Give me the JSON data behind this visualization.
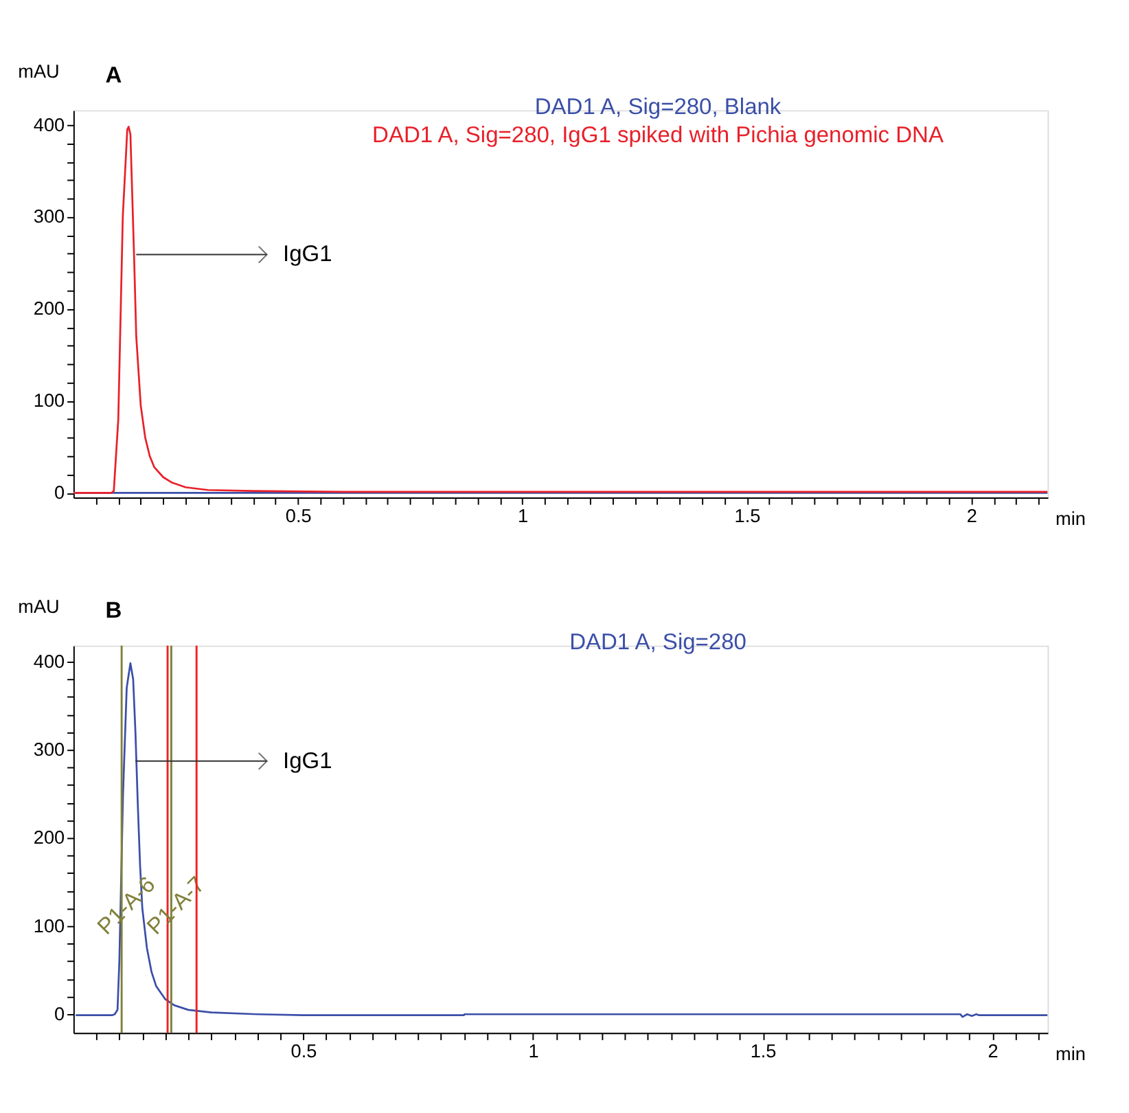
{
  "chart_data": [
    {
      "type": "line",
      "title": "A",
      "ylabel": "mAU",
      "xlabel": "min",
      "legend": "top",
      "grid": false,
      "xlim": [
        0,
        2.17
      ],
      "ylim": [
        -5,
        416
      ],
      "xticks": [
        {
          "value": 0.05,
          "label": null
        },
        {
          "value": 0.1,
          "label": null
        },
        {
          "value": 0.15,
          "label": null
        },
        {
          "value": 0.2,
          "label": null
        },
        {
          "value": 0.25,
          "label": null
        },
        {
          "value": 0.3,
          "label": null
        },
        {
          "value": 0.35,
          "label": null
        },
        {
          "value": 0.4,
          "label": null
        },
        {
          "value": 0.45,
          "label": null
        },
        0.5,
        {
          "value": 0.55,
          "label": null
        },
        {
          "value": 0.6,
          "label": null
        },
        {
          "value": 0.65,
          "label": null
        },
        {
          "value": 0.7,
          "label": null
        },
        {
          "value": 0.75,
          "label": null
        },
        {
          "value": 0.8,
          "label": null
        },
        {
          "value": 0.85,
          "label": null
        },
        {
          "value": 0.9,
          "label": null
        },
        {
          "value": 0.95,
          "label": null
        },
        1,
        {
          "value": 1.05,
          "label": null
        },
        {
          "value": 1.1,
          "label": null
        },
        {
          "value": 1.15,
          "label": null
        },
        {
          "value": 1.2,
          "label": null
        },
        {
          "value": 1.25,
          "label": null
        },
        {
          "value": 1.3,
          "label": null
        },
        {
          "value": 1.35,
          "label": null
        },
        {
          "value": 1.4,
          "label": null
        },
        {
          "value": 1.45,
          "label": null
        },
        1.5,
        {
          "value": 1.55,
          "label": null
        },
        {
          "value": 1.6,
          "label": null
        },
        {
          "value": 1.65,
          "label": null
        },
        {
          "value": 1.7,
          "label": null
        },
        {
          "value": 1.75,
          "label": null
        },
        {
          "value": 1.8,
          "label": null
        },
        {
          "value": 1.85,
          "label": null
        },
        {
          "value": 1.9,
          "label": null
        },
        {
          "value": 1.95,
          "label": null
        },
        2,
        {
          "value": 2.05,
          "label": null
        },
        {
          "value": 2.1,
          "label": null
        },
        {
          "value": 2.15,
          "label": null
        }
      ],
      "yticks": [
        0,
        {
          "value": 20,
          "label": null
        },
        {
          "value": 40,
          "label": null
        },
        {
          "value": 60,
          "label": null
        },
        {
          "value": 80,
          "label": null
        },
        100,
        {
          "value": 120,
          "label": null
        },
        {
          "value": 140,
          "label": null
        },
        {
          "value": 160,
          "label": null
        },
        {
          "value": 180,
          "label": null
        },
        200,
        {
          "value": 220,
          "label": null
        },
        {
          "value": 240,
          "label": null
        },
        {
          "value": 260,
          "label": null
        },
        {
          "value": 280,
          "label": null
        },
        300,
        {
          "value": 320,
          "label": null
        },
        {
          "value": 340,
          "label": null
        },
        {
          "value": 360,
          "label": null
        },
        {
          "value": 380,
          "label": null
        },
        400
      ],
      "annotations": [
        {
          "text": "IgG1",
          "x": 0.14,
          "y": 259
        }
      ],
      "series": [
        {
          "name": "DAD1 A, Sig=280, Blank",
          "color": "#3b4fa8",
          "x": [
            0,
            2.17
          ],
          "values": [
            0,
            0
          ]
        },
        {
          "name": "DAD1 A, Sig=280, IgG1 spiked with Pichia genomic DNA",
          "color": "#e8202a",
          "x": [
            0,
            0.085,
            0.09,
            0.1,
            0.11,
            0.12,
            0.123,
            0.127,
            0.135,
            0.14,
            0.15,
            0.16,
            0.17,
            0.18,
            0.2,
            0.22,
            0.25,
            0.3,
            0.4,
            0.6,
            1,
            2.17
          ],
          "values": [
            0,
            0,
            2,
            80,
            300,
            395,
            398,
            390,
            260,
            170,
            95,
            60,
            40,
            28,
            17,
            11,
            6,
            3,
            2,
            1,
            1,
            1
          ]
        }
      ]
    },
    {
      "type": "line",
      "title": "B",
      "ylabel": "mAU",
      "xlabel": "min",
      "legend": "top",
      "grid": false,
      "xlim": [
        0,
        2.12
      ],
      "ylim": [
        -21,
        418
      ],
      "xticks": [
        {
          "value": 0.05,
          "label": null
        },
        {
          "value": 0.1,
          "label": null
        },
        {
          "value": 0.15,
          "label": null
        },
        {
          "value": 0.2,
          "label": null
        },
        {
          "value": 0.25,
          "label": null
        },
        {
          "value": 0.3,
          "label": null
        },
        {
          "value": 0.35,
          "label": null
        },
        {
          "value": 0.4,
          "label": null
        },
        {
          "value": 0.45,
          "label": null
        },
        0.5,
        {
          "value": 0.55,
          "label": null
        },
        {
          "value": 0.6,
          "label": null
        },
        {
          "value": 0.65,
          "label": null
        },
        {
          "value": 0.7,
          "label": null
        },
        {
          "value": 0.75,
          "label": null
        },
        {
          "value": 0.8,
          "label": null
        },
        {
          "value": 0.85,
          "label": null
        },
        {
          "value": 0.9,
          "label": null
        },
        {
          "value": 0.95,
          "label": null
        },
        1,
        {
          "value": 1.05,
          "label": null
        },
        {
          "value": 1.1,
          "label": null
        },
        {
          "value": 1.15,
          "label": null
        },
        {
          "value": 1.2,
          "label": null
        },
        {
          "value": 1.25,
          "label": null
        },
        {
          "value": 1.3,
          "label": null
        },
        {
          "value": 1.35,
          "label": null
        },
        {
          "value": 1.4,
          "label": null
        },
        {
          "value": 1.45,
          "label": null
        },
        1.5,
        {
          "value": 1.55,
          "label": null
        },
        {
          "value": 1.6,
          "label": null
        },
        {
          "value": 1.65,
          "label": null
        },
        {
          "value": 1.7,
          "label": null
        },
        {
          "value": 1.75,
          "label": null
        },
        {
          "value": 1.8,
          "label": null
        },
        {
          "value": 1.85,
          "label": null
        },
        {
          "value": 1.9,
          "label": null
        },
        {
          "value": 1.95,
          "label": null
        },
        2,
        {
          "value": 2.05,
          "label": null
        },
        {
          "value": 2.1,
          "label": null
        }
      ],
      "yticks": [
        0,
        {
          "value": 20,
          "label": null
        },
        {
          "value": 40,
          "label": null
        },
        {
          "value": 60,
          "label": null
        },
        {
          "value": 80,
          "label": null
        },
        100,
        {
          "value": 120,
          "label": null
        },
        {
          "value": 140,
          "label": null
        },
        {
          "value": 160,
          "label": null
        },
        {
          "value": 180,
          "label": null
        },
        200,
        {
          "value": 220,
          "label": null
        },
        {
          "value": 240,
          "label": null
        },
        {
          "value": 260,
          "label": null
        },
        {
          "value": 280,
          "label": null
        },
        300,
        {
          "value": 320,
          "label": null
        },
        {
          "value": 340,
          "label": null
        },
        {
          "value": 360,
          "label": null
        },
        {
          "value": 380,
          "label": null
        },
        400
      ],
      "annotations": [
        {
          "text": "IgG1",
          "x": 0.135,
          "y": 287
        }
      ],
      "ref_lines": [
        {
          "axis": "x",
          "value": 0.105,
          "label": "P1-A-6",
          "color": "#80803a"
        },
        {
          "axis": "x",
          "value": 0.205,
          "label": null,
          "color": "#ee2222"
        },
        {
          "axis": "x",
          "value": 0.213,
          "label": "P1-A-7",
          "color": "#80803a"
        },
        {
          "axis": "x",
          "value": 0.268,
          "label": null,
          "color": "#ee2222"
        }
      ],
      "series": [
        {
          "name": "DAD1 A, Sig=280",
          "color": "#3b4fa8",
          "x": [
            0.005,
            0.085,
            0.09,
            0.096,
            0.1,
            0.108,
            0.116,
            0.124,
            0.13,
            0.135,
            0.14,
            0.145,
            0.15,
            0.16,
            0.17,
            0.18,
            0.2,
            0.22,
            0.25,
            0.3,
            0.4,
            0.5,
            0.85,
            0.851,
            1.5,
            1.93,
            1.935,
            1.945,
            1.955,
            1.965,
            1.97,
            2.12
          ],
          "values": [
            -1,
            -1,
            0,
            5,
            60,
            250,
            370,
            398,
            380,
            320,
            240,
            170,
            120,
            75,
            48,
            32,
            17,
            10,
            5,
            2,
            0,
            -1,
            -1,
            0,
            0,
            0,
            -3,
            0,
            -2,
            0,
            -1,
            -1
          ]
        }
      ]
    }
  ]
}
